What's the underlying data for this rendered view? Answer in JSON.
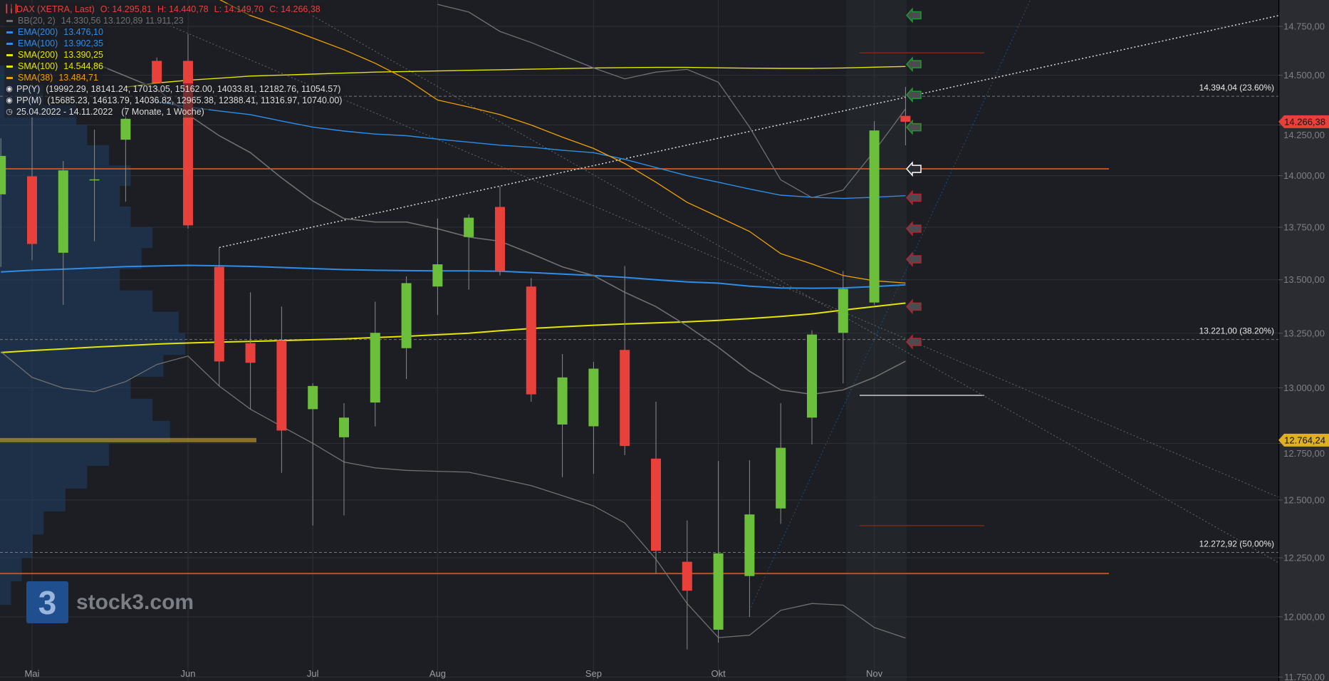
{
  "colors": {
    "background": "#1c1e23",
    "axis_background": "#2a2c31",
    "grid": "#2e3137",
    "up": "#6cbf3a",
    "down": "#e8413c",
    "bb": "#707070",
    "ema": "#2d8ee8",
    "sma_yellow": "#e6e600",
    "sma38": "#f0a000",
    "pivot_year": "#c0501c",
    "pivot_month_red": "#7a2a18",
    "pivot_month_white": "#cccccc",
    "poc": "#b8962a",
    "last_price_tag": "#e8413c",
    "poc_tag": "#e0b020",
    "volume_profile": "#1f3f66"
  },
  "legend": {
    "instrument": {
      "label": "DAX (XETRA, Last)",
      "o": "O: 14.295,81",
      "h": "H: 14.440,78",
      "l": "L: 14.149,70",
      "c": "C: 14.266,38",
      "icon": "candlestick-icon"
    },
    "items": [
      {
        "label": "BB(20, 2)",
        "value": "14.330,56  13.120,89  11.911,23",
        "color": "#707070"
      },
      {
        "label": "EMA(200)",
        "value": "13.476,10",
        "color": "#2d8ee8"
      },
      {
        "label": "EMA(100)",
        "value": "13.902,35",
        "color": "#2d8ee8"
      },
      {
        "label": "SMA(200)",
        "value": "13.390,25",
        "color": "#e6e600"
      },
      {
        "label": "SMA(100)",
        "value": "14.544,86",
        "color": "#e6e600"
      },
      {
        "label": "SMA(38)",
        "value": "13.484,71",
        "color": "#f0a000"
      }
    ],
    "pivots": [
      {
        "label": "PP(Y)",
        "value": "(19992.29, 18141.24, 17013.05, 15162.00, 14033.81, 12182.76, 11054.57)",
        "icon": "target-icon"
      },
      {
        "label": "PP(M)",
        "value": "(15685.23, 14613.79, 14036.82, 12965.38, 12388.41, 11316.97, 10740.00)",
        "icon": "target-icon"
      }
    ],
    "range": {
      "label": "25.04.2022 - 14.11.2022",
      "duration": "(7 Monate, 1 Woche)",
      "icon": "clock-icon"
    }
  },
  "logo": {
    "mark": "3",
    "text": "stock3.com"
  },
  "chart_data": {
    "type": "candlestick",
    "title": "DAX (XETRA, Last)",
    "interval": "weekly",
    "y_scale": "log",
    "ylim": [
      11750,
      14900
    ],
    "grid": true,
    "y_ticks": [
      "14.750,00",
      "14.500,00",
      "14.250,00",
      "14.000,00",
      "13.750,00",
      "13.500,00",
      "13.250,00",
      "13.000,00",
      "12.750,00",
      "12.500,00",
      "12.250,00",
      "12.000,00",
      "11.750,00"
    ],
    "y_tick_values": [
      14750,
      14500,
      14250,
      14000,
      13750,
      13500,
      13250,
      13000,
      12750,
      12500,
      12250,
      12000,
      11750
    ],
    "x_ticks": [
      {
        "label": "Mai",
        "date": "02.05.2022"
      },
      {
        "label": "Jun",
        "date": "06.06.2022"
      },
      {
        "label": "Jul",
        "date": "04.07.2022"
      },
      {
        "label": "Aug",
        "date": "01.08.2022"
      },
      {
        "label": "Sep",
        "date": "05.09.2022"
      },
      {
        "label": "Okt",
        "date": "03.10.2022"
      },
      {
        "label": "Nov",
        "date": "07.11.2022"
      }
    ],
    "dates": [
      "25.04.2022",
      "02.05.2022",
      "09.05.2022",
      "16.05.2022",
      "23.05.2022",
      "30.05.2022",
      "06.06.2022",
      "13.06.2022",
      "20.06.2022",
      "27.06.2022",
      "04.07.2022",
      "11.07.2022",
      "18.07.2022",
      "25.07.2022",
      "01.08.2022",
      "08.08.2022",
      "15.08.2022",
      "22.08.2022",
      "29.08.2022",
      "05.09.2022",
      "12.09.2022",
      "19.09.2022",
      "26.09.2022",
      "03.10.2022",
      "10.10.2022",
      "17.10.2022",
      "24.10.2022",
      "31.10.2022",
      "07.11.2022",
      "14.11.2022"
    ],
    "candles": [
      {
        "o": 13909,
        "h": 14184,
        "l": 13561,
        "c": 14097
      },
      {
        "o": 13997,
        "h": 14290,
        "l": 13592,
        "c": 13670
      },
      {
        "o": 13628,
        "h": 14072,
        "l": 13382,
        "c": 14026
      },
      {
        "o": 13980,
        "h": 14227,
        "l": 13683,
        "c": 13982
      },
      {
        "o": 14177,
        "h": 14345,
        "l": 13873,
        "c": 14281
      },
      {
        "o": 14573,
        "h": 14590,
        "l": 14457,
        "c": 14461
      },
      {
        "o": 14573,
        "h": 14711,
        "l": 13743,
        "c": 13759
      },
      {
        "o": 13561,
        "h": 13653,
        "l": 13006,
        "c": 13120
      },
      {
        "o": 13204,
        "h": 13441,
        "l": 12903,
        "c": 13114
      },
      {
        "o": 13216,
        "h": 13374,
        "l": 12619,
        "c": 12807
      },
      {
        "o": 12903,
        "h": 13020,
        "l": 12389,
        "c": 13008
      },
      {
        "o": 12777,
        "h": 12930,
        "l": 12433,
        "c": 12865
      },
      {
        "o": 12933,
        "h": 13397,
        "l": 12826,
        "c": 13252
      },
      {
        "o": 13181,
        "h": 13516,
        "l": 13040,
        "c": 13484
      },
      {
        "o": 13468,
        "h": 13792,
        "l": 13335,
        "c": 13573
      },
      {
        "o": 13703,
        "h": 13812,
        "l": 13453,
        "c": 13796
      },
      {
        "o": 13848,
        "h": 13947,
        "l": 13520,
        "c": 13541
      },
      {
        "o": 13468,
        "h": 13508,
        "l": 12937,
        "c": 12970
      },
      {
        "o": 12834,
        "h": 13154,
        "l": 12600,
        "c": 13047
      },
      {
        "o": 12826,
        "h": 13118,
        "l": 12615,
        "c": 13087
      },
      {
        "o": 13173,
        "h": 13565,
        "l": 12697,
        "c": 12738
      },
      {
        "o": 12682,
        "h": 12937,
        "l": 12182,
        "c": 12280
      },
      {
        "o": 12233,
        "h": 12411,
        "l": 11864,
        "c": 12110
      },
      {
        "o": 11946,
        "h": 12671,
        "l": 11892,
        "c": 12269
      },
      {
        "o": 12172,
        "h": 12675,
        "l": 11999,
        "c": 12437
      },
      {
        "o": 12463,
        "h": 12930,
        "l": 12396,
        "c": 12730
      },
      {
        "o": 12865,
        "h": 13264,
        "l": 12745,
        "c": 13244
      },
      {
        "o": 13252,
        "h": 13541,
        "l": 13020,
        "c": 13457
      },
      {
        "o": 13393,
        "h": 14269,
        "l": 13382,
        "c": 14223
      },
      {
        "o": 14295.81,
        "h": 14440.78,
        "l": 14149.7,
        "c": 14266.38
      }
    ],
    "series": [
      {
        "name": "EMA(200)",
        "color": "#2d8ee8",
        "width": 2,
        "values": [
          13537,
          13545,
          13550,
          13556,
          13562,
          13565,
          13568,
          13566,
          13563,
          13558,
          13553,
          13548,
          13545,
          13543,
          13542,
          13542,
          13540,
          13534,
          13527,
          13520,
          13511,
          13500,
          13490,
          13484,
          13470,
          13461,
          13460,
          13461,
          13468,
          13476.1
        ]
      },
      {
        "name": "EMA(100)",
        "color": "#2d8ee8",
        "width": 1.4,
        "values": [
          null,
          null,
          null,
          null,
          null,
          14366,
          14340,
          14320,
          14302,
          14270,
          14240,
          14220,
          14205,
          14197,
          14180,
          14165,
          14150,
          14140,
          14125,
          14113,
          14080,
          14040,
          14000,
          13968,
          13935,
          13905,
          13895,
          13889,
          13895,
          13902.35
        ]
      },
      {
        "name": "SMA(200)",
        "color": "#e6e600",
        "width": 2,
        "values": [
          13161,
          13170,
          13178,
          13186,
          13193,
          13200,
          13205,
          13209,
          13212,
          13216,
          13220,
          13224,
          13230,
          13236,
          13243,
          13250,
          13262,
          13272,
          13280,
          13287,
          13293,
          13298,
          13303,
          13310,
          13318,
          13328,
          13340,
          13358,
          13374,
          13390.25
        ]
      },
      {
        "name": "SMA(100)",
        "color": "#e6e600",
        "width": 1.4,
        "values": [
          null,
          null,
          null,
          null,
          14440,
          14461,
          14475,
          14485,
          14496,
          14501,
          14506,
          14511,
          14516,
          14519,
          14522,
          14525,
          14528,
          14531,
          14534,
          14537,
          14539,
          14540,
          14540,
          14538,
          14536,
          14535,
          14535,
          14537,
          14541,
          14544.86
        ]
      },
      {
        "name": "SMA(38)",
        "color": "#f0a000",
        "width": 1.3,
        "values": [
          null,
          null,
          null,
          null,
          null,
          null,
          null,
          14890,
          14806,
          14750,
          14690,
          14630,
          14561,
          14480,
          14375,
          14340,
          14302,
          14250,
          14190,
          14134,
          14060,
          13968,
          13870,
          13800,
          13730,
          13624,
          13575,
          13520,
          13495,
          13484.71
        ]
      },
      {
        "name": "BB upper",
        "color": "#707070",
        "width": 1.3,
        "values": [
          null,
          null,
          null,
          null,
          null,
          null,
          null,
          null,
          null,
          null,
          null,
          null,
          null,
          null,
          14864,
          14824,
          14724,
          14667,
          14602,
          14537,
          14482,
          14516,
          14530,
          14465,
          14240,
          13980,
          13893,
          13930,
          14121,
          14330.56
        ]
      },
      {
        "name": "BB middle",
        "color": "#707070",
        "width": 1.6,
        "values": [
          null,
          null,
          null,
          14561,
          14496,
          14432,
          14302,
          14197,
          14113,
          13989,
          13877,
          13792,
          13775,
          13775,
          13743,
          13703,
          13683,
          13624,
          13561,
          13520,
          13441,
          13374,
          13284,
          13185,
          13075,
          12990,
          12970,
          12990,
          13047,
          13120.89
        ]
      },
      {
        "name": "BB lower",
        "color": "#707070",
        "width": 1.3,
        "values": [
          13165,
          13047,
          12998,
          12982,
          13028,
          13106,
          13145,
          13008,
          12903,
          12826,
          12750,
          12667,
          12641,
          12630,
          12626,
          12622,
          12593,
          12563,
          12519,
          12474,
          12400,
          12244,
          12056,
          11913,
          11923,
          12027,
          12056,
          12049,
          11955,
          11911.23
        ]
      }
    ],
    "fibonacci": [
      {
        "price": 14394.04,
        "label": "14.394,04 (23.60%)"
      },
      {
        "price": 13221.0,
        "label": "13.221,00 (38.20%)"
      },
      {
        "price": 12272.92,
        "label": "12.272,92 (50.00%)"
      }
    ],
    "pivot_year_levels": [
      14033.81,
      12182.76
    ],
    "pivot_month_levels": [
      {
        "price": 14613.79,
        "kind": "red"
      },
      {
        "price": 12965.38,
        "kind": "white"
      },
      {
        "price": 12388.41,
        "kind": "red"
      }
    ],
    "trendlines": [
      {
        "from": [
          "13.06.2022",
          13653
        ],
        "to": [
          "06.02.2023",
          14807
        ],
        "style": "white-dotted"
      },
      {
        "from": [
          "30.05.2022",
          14782
        ],
        "to": [
          "06.02.2023",
          12510
        ],
        "style": "gray-dotted"
      },
      {
        "from": [
          "04.07.2022",
          14804
        ],
        "to": [
          "06.02.2023",
          12226
        ],
        "style": "gray-dotted"
      },
      {
        "from": [
          "10.10.2022",
          12027
        ],
        "to": [
          "12.12.2022",
          14886
        ],
        "style": "blue-dotted"
      }
    ],
    "signal_arrows": [
      {
        "price": 14807,
        "type": "green"
      },
      {
        "price": 14556,
        "type": "green"
      },
      {
        "price": 14401,
        "type": "green"
      },
      {
        "price": 14239,
        "type": "green"
      },
      {
        "price": 14033,
        "type": "white"
      },
      {
        "price": 13893,
        "type": "red"
      },
      {
        "price": 13743,
        "type": "red"
      },
      {
        "price": 13597,
        "type": "red"
      },
      {
        "price": 13374,
        "type": "red"
      },
      {
        "price": 13210,
        "type": "red"
      }
    ],
    "volume_profile": {
      "prices": [
        14500,
        14400,
        14300,
        14200,
        14100,
        14000,
        13900,
        13800,
        13700,
        13600,
        13500,
        13400,
        13300,
        13200,
        13100,
        13000,
        12900,
        12800,
        12700,
        12600,
        12500,
        12400,
        12300,
        12200,
        12100
      ],
      "relative": [
        0.1,
        0.2,
        0.35,
        0.4,
        0.5,
        0.6,
        0.55,
        0.6,
        0.7,
        0.65,
        0.55,
        0.7,
        0.82,
        0.85,
        0.75,
        0.6,
        0.7,
        0.78,
        0.5,
        0.4,
        0.3,
        0.2,
        0.15,
        0.1,
        0.05
      ],
      "poc": 12764.24
    },
    "price_tags": [
      {
        "label": "14.266,38",
        "price": 14266.38,
        "kind": "last"
      },
      {
        "label": "12.764,24",
        "price": 12764.24,
        "kind": "poc"
      }
    ]
  }
}
